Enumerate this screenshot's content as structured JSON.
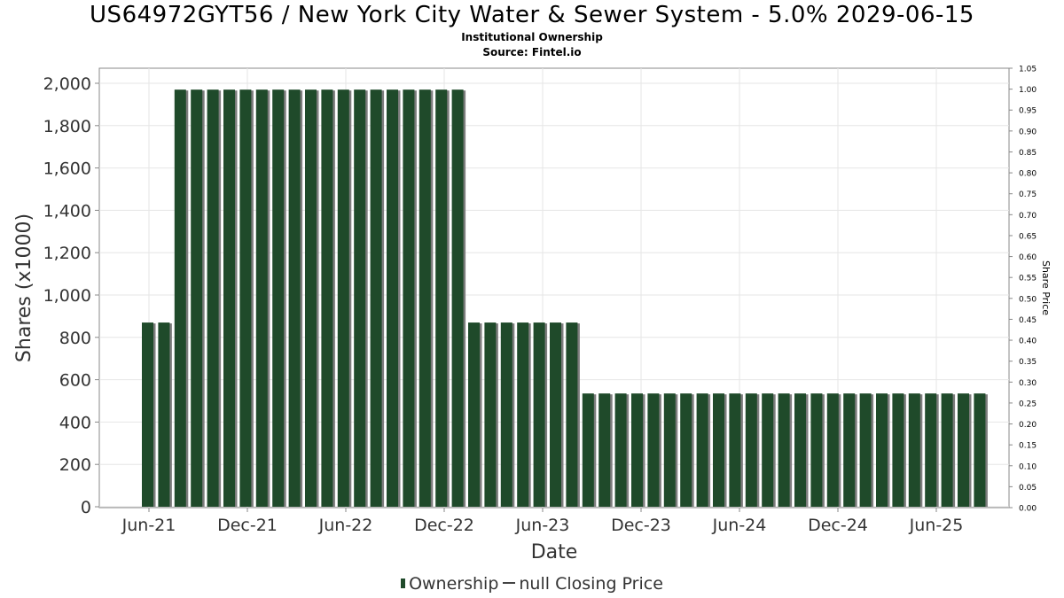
{
  "header": {
    "title": "US64972GYT56 / New York City Water & Sewer System - 5.0% 2029-06-15",
    "subtitle": "Institutional Ownership",
    "source": "Source: Fintel.io"
  },
  "legend": {
    "ownership": "Ownership",
    "price": "null Closing Price"
  },
  "colors": {
    "bar": "#1f4a2a",
    "bar_shadow": "#7d7d7d",
    "grid": "#e6e6e6",
    "axis": "#888888"
  },
  "chart_data": {
    "type": "bar",
    "title": "US64972GYT56 / New York City Water & Sewer System - 5.0% 2029-06-15",
    "xlabel": "Date",
    "ylabel": "Shares (x1000)",
    "y2label": "Share Price",
    "ylim": [
      0,
      2100
    ],
    "y2lim": [
      0,
      1.05
    ],
    "yticks": [
      "0",
      "200",
      "400",
      "600",
      "800",
      "1,000",
      "1,200",
      "1,400",
      "1,600",
      "1,800",
      "2,000"
    ],
    "y2ticks": [
      "0.00",
      "0.05",
      "0.10",
      "0.15",
      "0.20",
      "0.25",
      "0.30",
      "0.35",
      "0.40",
      "0.45",
      "0.50",
      "0.55",
      "0.60",
      "0.65",
      "0.70",
      "0.75",
      "0.80",
      "0.85",
      "0.90",
      "0.95",
      "1.00",
      "1.05"
    ],
    "xticks": [
      "Jun-21",
      "Dec-21",
      "Jun-22",
      "Dec-22",
      "Jun-23",
      "Dec-23",
      "Jun-24",
      "Dec-24",
      "Jun-25"
    ],
    "grid": true,
    "legend_position": "bottom",
    "series": [
      {
        "name": "Ownership",
        "values": [
          870,
          870,
          1970,
          1970,
          1970,
          1970,
          1970,
          1970,
          1970,
          1970,
          1970,
          1970,
          1970,
          1970,
          1970,
          1970,
          1970,
          1970,
          1970,
          1970,
          870,
          870,
          870,
          870,
          870,
          870,
          870,
          535,
          535,
          535,
          535,
          535,
          535,
          535,
          535,
          535,
          535,
          535,
          535,
          535,
          535,
          535,
          535,
          535,
          535,
          535,
          535,
          535,
          535,
          535,
          535,
          535
        ]
      }
    ]
  }
}
